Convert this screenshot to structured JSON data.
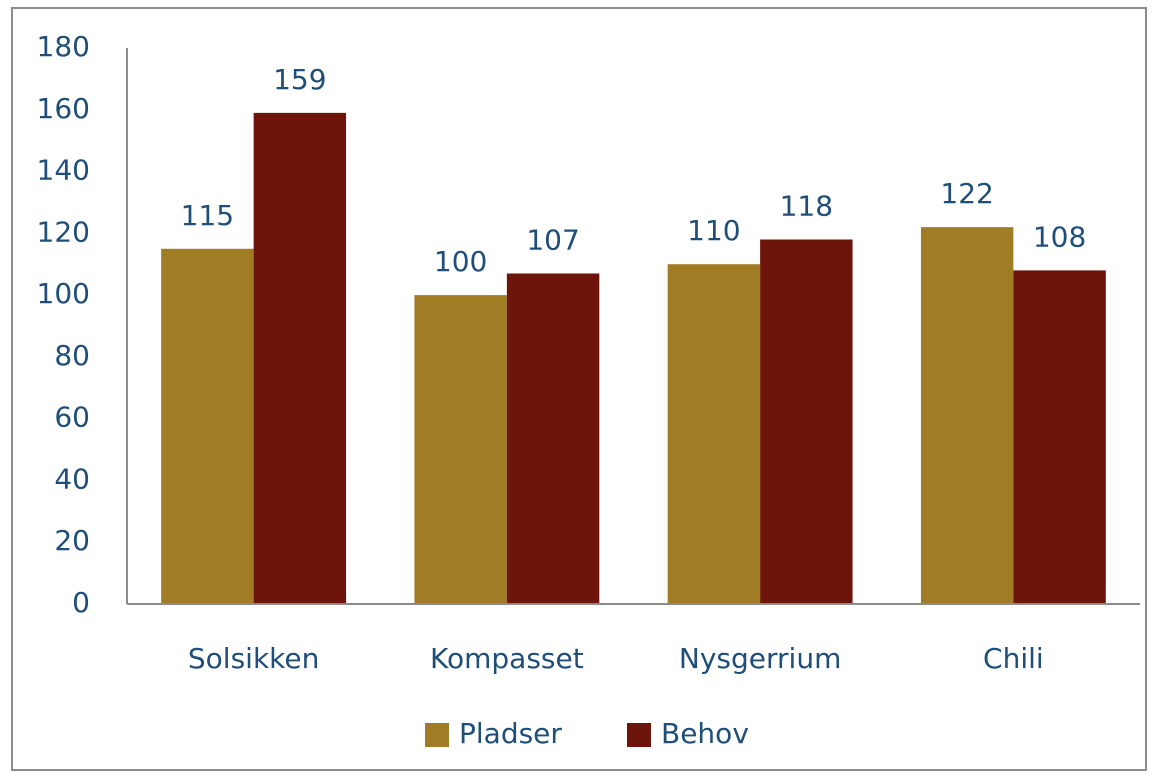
{
  "chart_data": {
    "type": "bar",
    "categories": [
      "Solsikken",
      "Kompasset",
      "Nysgerrium",
      "Chili"
    ],
    "series": [
      {
        "name": "Pladser",
        "color": "#a07c24",
        "values": [
          115,
          100,
          110,
          122
        ]
      },
      {
        "name": "Behov",
        "color": "#6e150b",
        "values": [
          159,
          107,
          118,
          108
        ]
      }
    ],
    "ylim": [
      0,
      180
    ],
    "yticks": [
      0,
      20,
      40,
      60,
      80,
      100,
      120,
      140,
      160,
      180
    ],
    "grid": false,
    "legend": "bottom",
    "data_labels": true
  }
}
